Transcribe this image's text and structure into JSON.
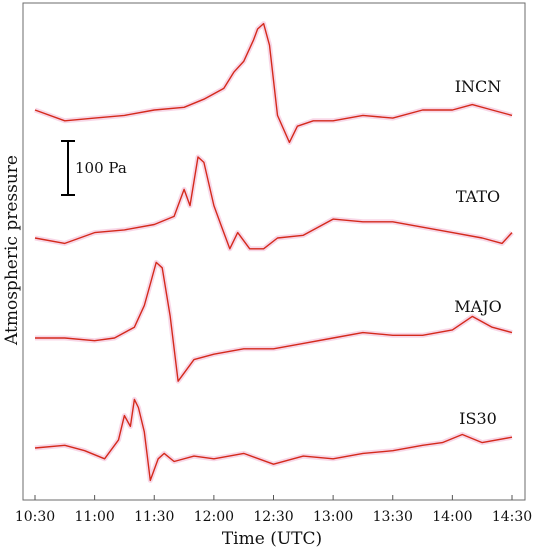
{
  "chart_data": {
    "type": "line",
    "title": "",
    "xlabel": "Time (UTC)",
    "ylabel": "Atmospheric pressure",
    "xticks": [
      "10:30",
      "11:00",
      "11:30",
      "12:00",
      "12:30",
      "13:00",
      "13:30",
      "14:00",
      "14:30"
    ],
    "xlim": [
      "10:30",
      "14:30"
    ],
    "grid": false,
    "line_color": "#d42a1c",
    "scale_bar": {
      "label": "100 Pa",
      "value_pa": 100
    },
    "series": [
      {
        "name": "INCN",
        "x": [
          "10:30",
          "10:45",
          "11:00",
          "11:15",
          "11:30",
          "11:45",
          "11:55",
          "12:05",
          "12:10",
          "12:15",
          "12:20",
          "12:22",
          "12:25",
          "12:28",
          "12:32",
          "12:38",
          "12:42",
          "12:50",
          "13:00",
          "13:15",
          "13:30",
          "13:45",
          "14:00",
          "14:10",
          "14:20",
          "14:30"
        ],
        "pressure_pa": [
          0,
          -20,
          -15,
          -10,
          0,
          5,
          20,
          40,
          70,
          90,
          130,
          150,
          160,
          120,
          -10,
          -60,
          -30,
          -20,
          -20,
          -10,
          -15,
          0,
          0,
          10,
          0,
          -10
        ]
      },
      {
        "name": "TATO",
        "x": [
          "10:30",
          "10:45",
          "11:00",
          "11:15",
          "11:30",
          "11:40",
          "11:45",
          "11:48",
          "11:52",
          "11:55",
          "12:00",
          "12:04",
          "12:08",
          "12:12",
          "12:18",
          "12:25",
          "12:32",
          "12:45",
          "13:00",
          "13:15",
          "13:30",
          "13:45",
          "14:00",
          "14:15",
          "14:25",
          "14:30"
        ],
        "pressure_pa": [
          0,
          -10,
          10,
          15,
          25,
          40,
          90,
          60,
          150,
          140,
          60,
          20,
          -20,
          10,
          -20,
          -20,
          0,
          5,
          35,
          30,
          30,
          20,
          10,
          0,
          -10,
          10
        ]
      },
      {
        "name": "MAJO",
        "x": [
          "10:30",
          "10:45",
          "11:00",
          "11:10",
          "11:15",
          "11:20",
          "11:25",
          "11:28",
          "11:31",
          "11:34",
          "11:38",
          "11:42",
          "11:50",
          "12:00",
          "12:15",
          "12:30",
          "12:45",
          "13:00",
          "13:15",
          "13:30",
          "13:45",
          "14:00",
          "14:10",
          "14:20",
          "14:30"
        ],
        "pressure_pa": [
          0,
          0,
          -5,
          0,
          10,
          20,
          60,
          100,
          140,
          130,
          40,
          -80,
          -40,
          -30,
          -20,
          -20,
          -10,
          0,
          10,
          5,
          5,
          15,
          40,
          20,
          10
        ]
      },
      {
        "name": "IS30",
        "x": [
          "10:30",
          "10:45",
          "10:55",
          "11:05",
          "11:12",
          "11:15",
          "11:18",
          "11:20",
          "11:22",
          "11:25",
          "11:28",
          "11:32",
          "11:35",
          "11:40",
          "11:50",
          "12:00",
          "12:15",
          "12:30",
          "12:45",
          "13:00",
          "13:15",
          "13:30",
          "13:45",
          "13:55",
          "14:05",
          "14:15",
          "14:30"
        ],
        "pressure_pa": [
          0,
          5,
          -5,
          -20,
          15,
          60,
          40,
          90,
          75,
          30,
          -60,
          -20,
          -10,
          -25,
          -15,
          -20,
          -10,
          -30,
          -15,
          -20,
          -10,
          -5,
          5,
          10,
          25,
          10,
          20
        ]
      }
    ]
  }
}
